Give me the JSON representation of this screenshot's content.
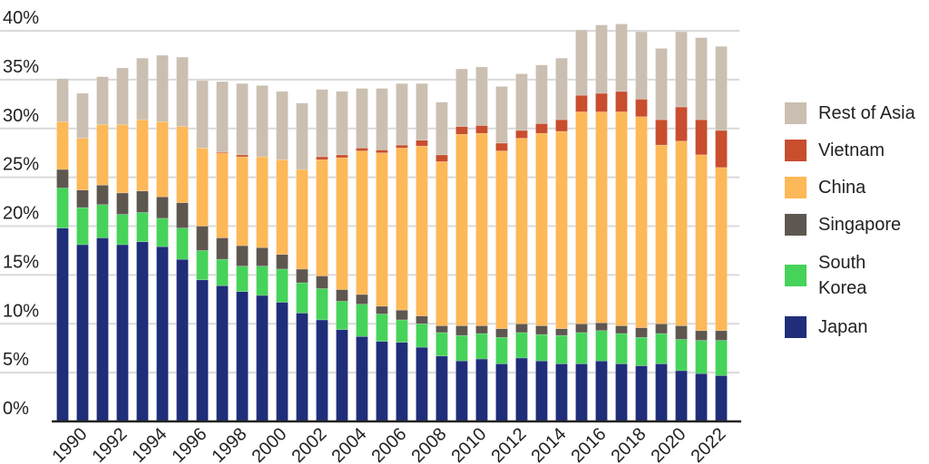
{
  "chart_data": {
    "type": "bar",
    "stacked": true,
    "categories": [
      "1989",
      "1990",
      "1991",
      "1992",
      "1993",
      "1994",
      "1995",
      "1996",
      "1997",
      "1998",
      "1999",
      "2000",
      "2001",
      "2002",
      "2003",
      "2004",
      "2005",
      "2006",
      "2007",
      "2008",
      "2009",
      "2010",
      "2011",
      "2012",
      "2013",
      "2014",
      "2015",
      "2016",
      "2017",
      "2018",
      "2019",
      "2020",
      "2021",
      "2022"
    ],
    "x_tick_labels": [
      "1990",
      "1992",
      "1994",
      "1996",
      "1998",
      "2000",
      "2002",
      "2004",
      "2006",
      "2008",
      "2010",
      "2012",
      "2014",
      "2016",
      "2018",
      "2020",
      "2022"
    ],
    "y_tick_labels": [
      "0%",
      "5%",
      "10%",
      "15%",
      "20%",
      "25%",
      "30%",
      "35%",
      "40%"
    ],
    "ylim": [
      0,
      40
    ],
    "grid": true,
    "legend_position": "right",
    "series": [
      {
        "name": "Japan",
        "color": "#202e7a",
        "values": [
          19.8,
          18.1,
          18.8,
          18.1,
          18.4,
          17.9,
          16.6,
          14.5,
          13.9,
          13.3,
          12.9,
          12.2,
          11.1,
          10.4,
          9.4,
          8.7,
          8.2,
          8.1,
          7.6,
          6.7,
          6.2,
          6.4,
          5.9,
          6.5,
          6.2,
          5.9,
          5.9,
          6.2,
          5.9,
          5.7,
          5.9,
          5.2,
          4.9,
          4.7
        ]
      },
      {
        "name": "South Korea",
        "color": "#46d35a",
        "values": [
          4.1,
          3.8,
          3.4,
          3.1,
          3.0,
          2.9,
          3.2,
          3.0,
          2.7,
          2.6,
          3.0,
          3.4,
          3.1,
          3.2,
          2.9,
          3.3,
          2.8,
          2.3,
          2.4,
          2.4,
          2.6,
          2.6,
          2.7,
          2.6,
          2.7,
          2.9,
          3.2,
          3.1,
          3.1,
          2.9,
          3.1,
          3.2,
          3.4,
          3.6
        ]
      },
      {
        "name": "Singapore",
        "color": "#5e5750",
        "values": [
          1.9,
          1.8,
          2.0,
          2.2,
          2.2,
          2.2,
          2.6,
          2.5,
          2.2,
          2.1,
          1.9,
          1.5,
          1.4,
          1.3,
          1.2,
          1.0,
          0.8,
          1.0,
          0.8,
          0.7,
          1.0,
          0.8,
          0.9,
          0.9,
          0.9,
          0.7,
          0.9,
          0.8,
          0.8,
          1.0,
          1.0,
          1.4,
          1.0,
          1.0
        ]
      },
      {
        "name": "China",
        "color": "#fdb857",
        "values": [
          4.9,
          5.3,
          6.2,
          7.0,
          7.3,
          7.7,
          7.8,
          8.0,
          8.7,
          9.1,
          9.3,
          9.7,
          10.2,
          11.9,
          13.5,
          14.7,
          15.7,
          16.6,
          17.4,
          16.8,
          19.6,
          19.7,
          18.2,
          19.0,
          19.7,
          20.2,
          21.7,
          21.6,
          21.9,
          21.6,
          18.3,
          18.9,
          18.0,
          16.7
        ]
      },
      {
        "name": "Vietnam",
        "color": "#c84e2e",
        "values": [
          0,
          0,
          0,
          0,
          0,
          0,
          0,
          0,
          0.1,
          0.2,
          0,
          0,
          0,
          0.3,
          0.3,
          0.3,
          0.3,
          0.3,
          0.6,
          0.7,
          0.8,
          0.8,
          0.8,
          0.8,
          1.0,
          1.2,
          1.7,
          1.9,
          2.1,
          1.8,
          2.6,
          3.5,
          3.6,
          3.8
        ]
      },
      {
        "name": "Rest of Asia",
        "color": "#cbbfb1",
        "values": [
          4.4,
          4.6,
          4.9,
          5.8,
          6.3,
          6.8,
          7.1,
          6.9,
          7.2,
          7.3,
          7.3,
          7.0,
          6.8,
          6.9,
          6.5,
          6.1,
          6.3,
          6.3,
          5.8,
          5.4,
          5.9,
          6.0,
          5.8,
          5.8,
          6.0,
          6.3,
          6.7,
          7.0,
          6.9,
          6.9,
          7.3,
          7.7,
          8.4,
          8.6
        ]
      }
    ]
  },
  "legend": {
    "items": [
      {
        "label": "Rest of Asia",
        "color": "#cbbfb1"
      },
      {
        "label": "Vietnam",
        "color": "#c84e2e"
      },
      {
        "label": "China",
        "color": "#fdb857"
      },
      {
        "label": "Singapore",
        "color": "#5e5750"
      },
      {
        "label": "South Korea",
        "line1": "South",
        "line2": "Korea",
        "color": "#46d35a"
      },
      {
        "label": "Japan",
        "color": "#202e7a"
      }
    ]
  }
}
